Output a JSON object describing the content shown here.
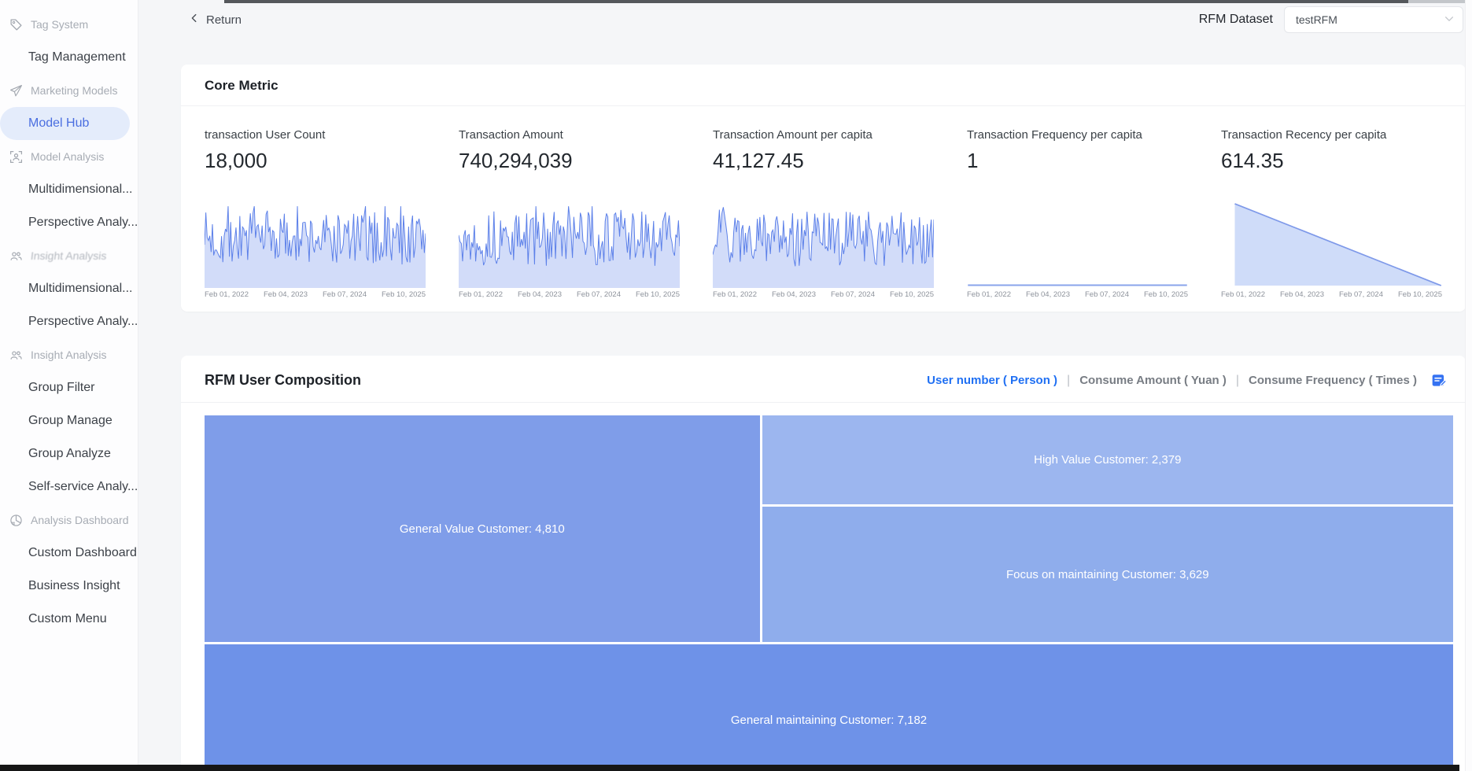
{
  "header": {
    "return_label": "Return",
    "dataset_label": "RFM Dataset",
    "dataset_value": "testRFM"
  },
  "sidebar": {
    "items": [
      {
        "kind": "group",
        "icon": "tag-icon",
        "label": "Tag System"
      },
      {
        "kind": "item",
        "label": "Tag Management"
      },
      {
        "kind": "group",
        "icon": "send-icon",
        "label": "Marketing Models"
      },
      {
        "kind": "item",
        "label": "Model Hub",
        "active": true
      },
      {
        "kind": "group",
        "icon": "model-analysis-icon",
        "label": "Model Analysis"
      },
      {
        "kind": "item",
        "label": "Multidimensional..."
      },
      {
        "kind": "item",
        "label": "Perspective Analy..."
      },
      {
        "kind": "group",
        "icon": "insight-analysis-icon",
        "label": "Insight Analysis",
        "glitch": true
      },
      {
        "kind": "item",
        "label": "Multidimensional..."
      },
      {
        "kind": "item",
        "label": "Perspective Analy..."
      },
      {
        "kind": "group",
        "icon": "insight-analysis-icon",
        "label": "Insight Analysis"
      },
      {
        "kind": "item",
        "label": "Group Filter"
      },
      {
        "kind": "item",
        "label": "Group Manage"
      },
      {
        "kind": "item",
        "label": "Group Analyze"
      },
      {
        "kind": "item",
        "label": "Self-service Analy..."
      },
      {
        "kind": "group",
        "icon": "dashboard-icon",
        "label": "Analysis Dashboard"
      },
      {
        "kind": "item",
        "label": "Custom Dashboard"
      },
      {
        "kind": "item",
        "label": "Business Insight"
      },
      {
        "kind": "item",
        "label": "Custom Menu"
      }
    ]
  },
  "core_metric": {
    "title": "Core Metric",
    "x_ticks": [
      "Feb 01, 2022",
      "Feb 04, 2023",
      "Feb 07, 2024",
      "Feb 10, 2025"
    ],
    "metrics": [
      {
        "label": "transaction User Count",
        "value": "18,000",
        "spark": "noise",
        "seed": 7
      },
      {
        "label": "Transaction Amount",
        "value": "740,294,039",
        "spark": "noise",
        "seed": 13
      },
      {
        "label": "Transaction Amount per capita",
        "value": "41,127.45",
        "spark": "noise",
        "seed": 29
      },
      {
        "label": "Transaction Frequency per capita",
        "value": "1",
        "spark": "flat"
      },
      {
        "label": "Transaction Recency per capita",
        "value": "614.35",
        "spark": "decline"
      }
    ]
  },
  "rfm": {
    "title": "RFM User Composition",
    "tabs": [
      {
        "label": "User number ( Person )",
        "active": true
      },
      {
        "label": "Consume Amount ( Yuan )",
        "active": false
      },
      {
        "label": "Consume Frequency ( Times )",
        "active": false
      }
    ],
    "edit_icon": "edit-document-icon"
  },
  "chart_data": {
    "sparklines": {
      "type": "line",
      "x_ticks": [
        "Feb 01, 2022",
        "Feb 04, 2023",
        "Feb 07, 2024",
        "Feb 10, 2025"
      ],
      "patterns": [
        "noisy-dense",
        "noisy-dense",
        "noisy-dense",
        "flat-at-baseline",
        "linear-decline-to-zero"
      ],
      "line_color": "#5c80e9",
      "fill_color": "rgba(95,129,233,0.28)"
    },
    "treemap": {
      "type": "treemap",
      "unit": "User number ( Person )",
      "total": 18000,
      "items": [
        {
          "label": "General Value Customer",
          "value": 4810,
          "color": "#7f9de9",
          "position": "top-left"
        },
        {
          "label": "High Value Customer",
          "value": 2379,
          "color": "#9cb6ef",
          "position": "top-right-upper"
        },
        {
          "label": "Focus on maintaining Customer",
          "value": 3629,
          "color": "#8fadec",
          "position": "top-right-lower"
        },
        {
          "label": "General maintaining Customer",
          "value": 7182,
          "color": "#6e92e8",
          "position": "bottom"
        }
      ]
    }
  },
  "colors": {
    "accent_blue": "#2070f3",
    "sidebar_active_text": "#4a6ee0",
    "sidebar_active_bg": "#e4ecfb",
    "page_bg": "#f5f6f8",
    "decline_fill": "#cfdcf9",
    "decline_stroke": "#7e99e9",
    "flat_stroke": "#8aa4eb"
  }
}
